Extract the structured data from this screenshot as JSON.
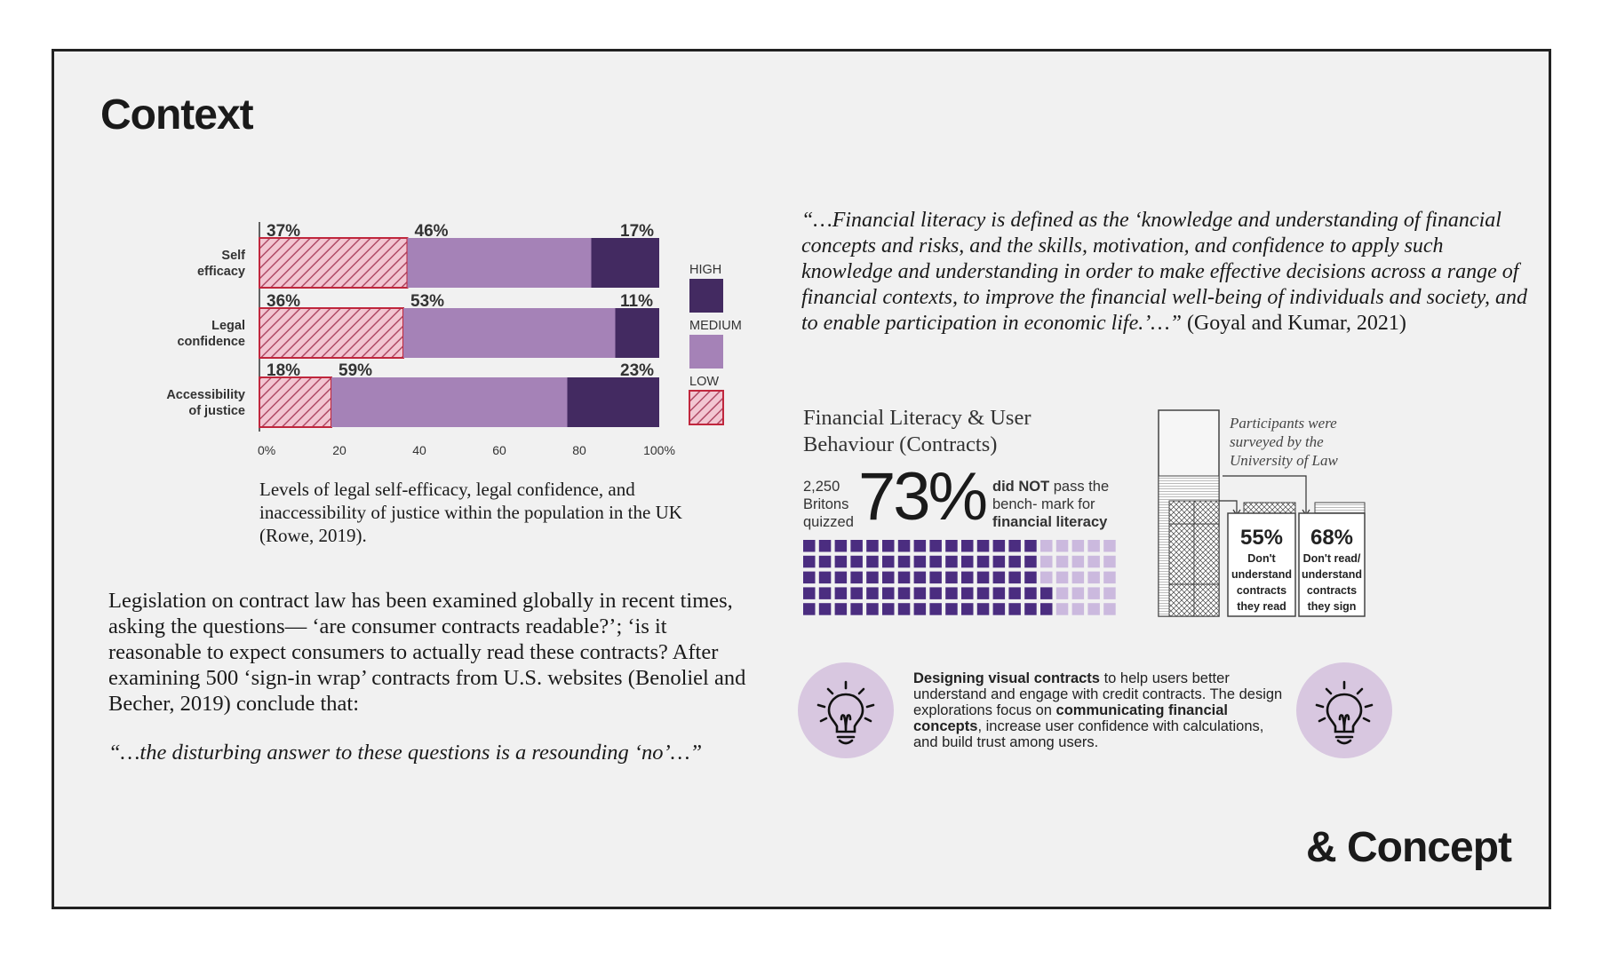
{
  "title": "Context",
  "footer_title": "& Concept",
  "chart_data": {
    "type": "bar",
    "stacked": true,
    "orientation": "horizontal",
    "categories": [
      "Self efficacy",
      "Legal confidence",
      "Accessibility of justice"
    ],
    "category_lines": [
      [
        "Self",
        "efficacy"
      ],
      [
        "Legal",
        "confidence"
      ],
      [
        "Accessibility",
        "of justice"
      ]
    ],
    "series": [
      {
        "name": "LOW",
        "values": [
          37,
          36,
          18
        ],
        "labels": [
          "37%",
          "36%",
          "18%"
        ],
        "color": "#f2c6d2",
        "stroke": "#c0273d"
      },
      {
        "name": "MEDIUM",
        "values": [
          46,
          53,
          59
        ],
        "labels": [
          "46%",
          "53%",
          "59%"
        ],
        "color": "#a582b7"
      },
      {
        "name": "HIGH",
        "values": [
          17,
          11,
          23
        ],
        "labels": [
          "17%",
          "11%",
          "23%"
        ],
        "color": "#432a61"
      }
    ],
    "legend": [
      "HIGH",
      "MEDIUM",
      "LOW"
    ],
    "legend_position": "right",
    "xlim": [
      0,
      100
    ],
    "xticks": [
      "0%",
      "20",
      "40",
      "60",
      "80",
      "100%"
    ]
  },
  "caption": "Levels of legal self-efficacy, legal confidence, and inaccessibility of justice within the population in the UK (Rowe, 2019).",
  "body_text": "Legislation on contract law has been examined globally in recent times, asking the questions— ‘are consumer contracts readable?’; ‘is it reasonable to expect consumers to actually read these contracts?   After examining 500 ‘sign-in wrap’ contracts from U.S. websites (Benoliel and Becher, 2019) conclude that:",
  "quote_small": "“…the disturbing answer to these questions is a resounding ‘no’…”",
  "big_quote": {
    "italic": "“…Financial literacy is defined as the ‘knowledge and understanding of financial concepts and risks, and the skills, motivation, and confidence to apply such knowledge and understanding in order to make effective decisions across a range of financial contexts, to improve the financial well-being of individuals and society, and to enable participation in economic life.’…”",
    "citation": " (Goyal and Kumar, 2021)"
  },
  "fin_lit": {
    "title": "Financial Literacy & User Behaviour (Contracts)",
    "count_line1": "2,250",
    "count_line2": "Britons",
    "count_line3": "quizzed",
    "big_percent": "73%",
    "desc_bold1": "did NOT",
    "desc_mid": " pass the bench- mark for ",
    "desc_bold2": "financial literacy",
    "waffle_filled_fraction": 0.73,
    "waffle_dark": "#4b2d80",
    "waffle_light": "#cbb9de"
  },
  "survey": {
    "note_line1": "Participants were",
    "note_line2": "surveyed by the",
    "note_line3": "University of Law",
    "stat1_pct": "55%",
    "stat1_l1": "Don't",
    "stat1_l2": "understand",
    "stat1_l3": "contracts",
    "stat1_l4": "they read",
    "stat2_pct": "68%",
    "stat2_l1": "Don't read/",
    "stat2_l2": "understand",
    "stat2_l3": "contracts",
    "stat2_l4": "they sign"
  },
  "design": {
    "bold1": "Designing visual contracts",
    "text1": " to help users better understand and engage with credit contracts. The design explorations focus on ",
    "bold2": "communicating financial concepts",
    "text2": ", increase user confidence with calculations, and build trust among users."
  }
}
